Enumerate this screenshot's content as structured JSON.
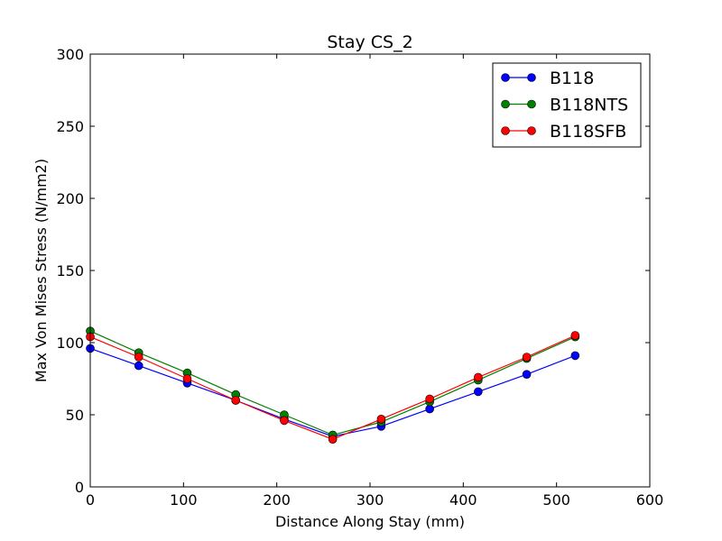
{
  "chart_data": {
    "type": "line",
    "title": "Stay CS_2",
    "xlabel": "Distance Along Stay (mm)",
    "ylabel": "Max Von Mises Stress (N/mm2)",
    "xlim": [
      0,
      600
    ],
    "ylim": [
      0,
      300
    ],
    "xticks": [
      "0",
      "100",
      "200",
      "300",
      "400",
      "500",
      "600"
    ],
    "yticks": [
      "0",
      "50",
      "100",
      "150",
      "200",
      "250",
      "300"
    ],
    "grid": false,
    "legend_position": "top-right",
    "x": [
      0,
      52,
      104,
      156,
      208,
      260,
      312,
      364,
      416,
      468,
      520
    ],
    "series": [
      {
        "name": "B118",
        "color": "#0000ff",
        "values": [
          96,
          84,
          72,
          60,
          47,
          35,
          42,
          54,
          66,
          78,
          91
        ]
      },
      {
        "name": "B118NTS",
        "color": "#008000",
        "values": [
          108,
          93,
          79,
          64,
          50,
          36,
          45,
          59,
          74,
          89,
          104
        ]
      },
      {
        "name": "B118SFB",
        "color": "#ff0000",
        "values": [
          104,
          90,
          75,
          60,
          46,
          33,
          47,
          61,
          76,
          90,
          105
        ]
      }
    ]
  }
}
